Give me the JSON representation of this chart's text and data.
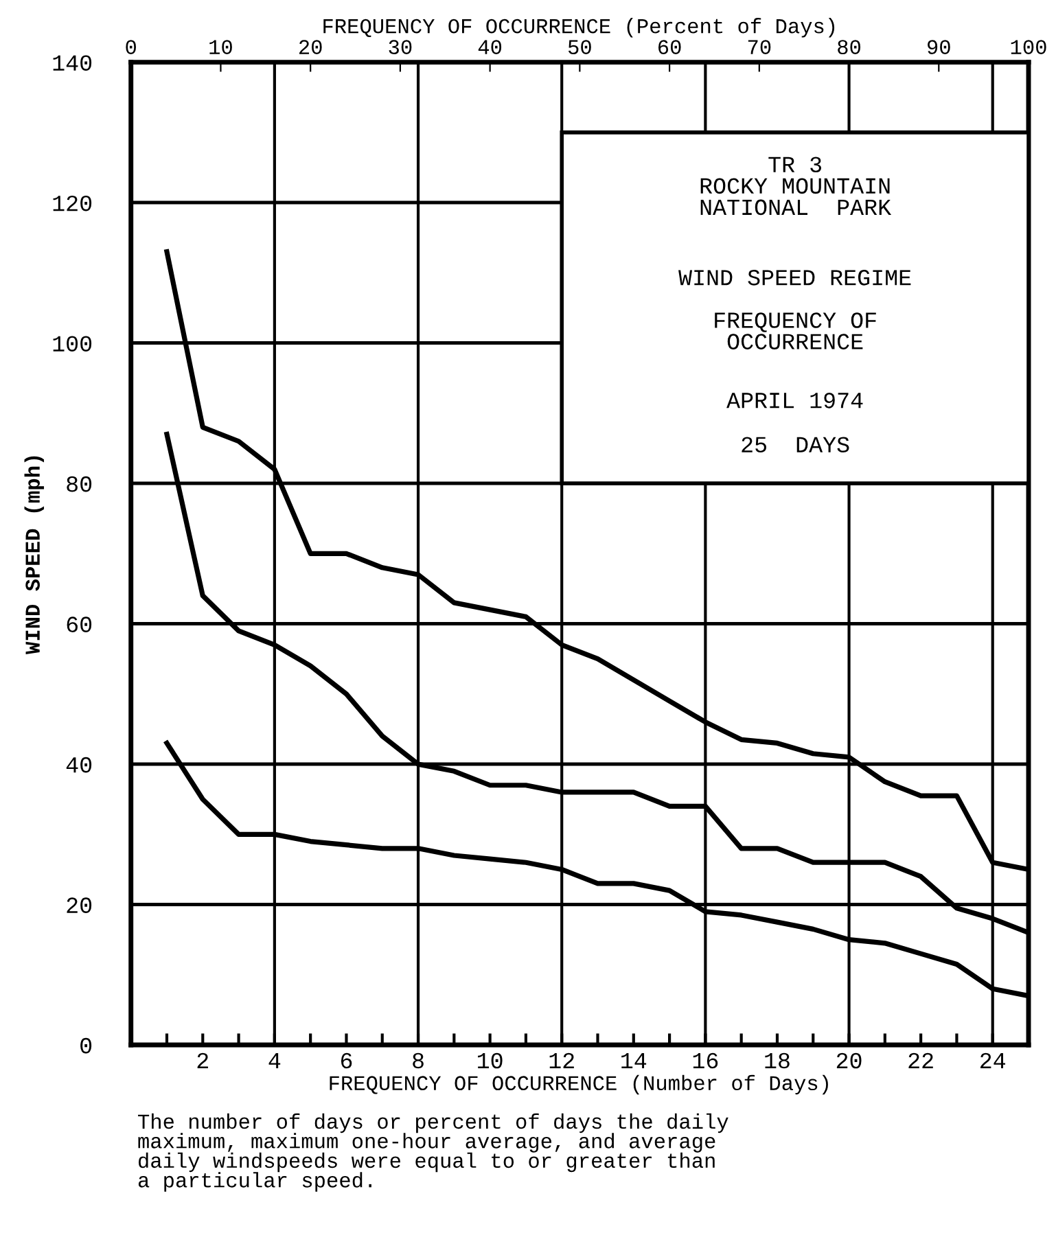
{
  "chart_data": {
    "type": "line",
    "title": "TR 3\nROCKY MOUNTAIN\nNATIONAL  PARK",
    "subtitle": "WIND SPEED REGIME\n\nFREQUENCY OF\nOCCURRENCE",
    "xlabel": "FREQUENCY OF OCCURRENCE (Number of Days)",
    "x2label": "FREQUENCY OF OCCURRENCE (Percent of Days)",
    "ylabel": "WIND SPEED (mph)",
    "annotations": [
      "APRIL 1974",
      "25  DAYS",
      "The number of days or percent of days the daily\nmaximum, maximum one-hour average, and average\ndaily windspeeds were equal to or greater than\na particular speed."
    ],
    "x": [
      1,
      2,
      3,
      4,
      5,
      6,
      7,
      8,
      9,
      10,
      11,
      12,
      13,
      14,
      15,
      16,
      17,
      18,
      19,
      20,
      21,
      22,
      23,
      24,
      25
    ],
    "series": [
      {
        "color": "#000000",
        "values": [
          113,
          88,
          86,
          82,
          70,
          70,
          68,
          67,
          63,
          62,
          61,
          57,
          55,
          52,
          49,
          46,
          43.5,
          43,
          41.5,
          41,
          37.5,
          35.5,
          35.5,
          26,
          25
        ]
      },
      {
        "color": "#000000",
        "values": [
          87,
          64,
          59,
          57,
          54,
          50,
          44,
          40,
          39,
          37,
          37,
          36,
          36,
          36,
          34,
          34,
          28,
          28,
          26,
          26,
          26,
          24,
          19.5,
          18,
          16
        ]
      },
      {
        "color": "#000000",
        "values": [
          43,
          35,
          30,
          30,
          29,
          28.5,
          28,
          28,
          27,
          26.5,
          26,
          25,
          23,
          23,
          22,
          19,
          18.5,
          17.5,
          16.5,
          15,
          14.5,
          13,
          11.5,
          8,
          7
        ]
      }
    ],
    "xlim": [
      0,
      25
    ],
    "xticks": [
      {
        "value": 1,
        "label": null
      },
      2,
      {
        "value": 3,
        "label": null
      },
      4,
      {
        "value": 5,
        "label": null
      },
      6,
      {
        "value": 7,
        "label": null
      },
      8,
      {
        "value": 9,
        "label": null
      },
      10,
      {
        "value": 11,
        "label": null
      },
      12,
      {
        "value": 13,
        "label": null
      },
      14,
      {
        "value": 15,
        "label": null
      },
      16,
      {
        "value": 17,
        "label": null
      },
      18,
      {
        "value": 19,
        "label": null
      },
      20,
      {
        "value": 21,
        "label": null
      },
      22,
      {
        "value": 23,
        "label": null
      },
      24
    ],
    "x2lim": [
      0,
      100
    ],
    "x2ticks": [
      0,
      10,
      20,
      30,
      40,
      50,
      60,
      70,
      80,
      90,
      100
    ],
    "ylim": [
      0,
      140
    ],
    "yticks": [
      0,
      20,
      40,
      60,
      80,
      100,
      120,
      140
    ],
    "grid": "y",
    "ref_lines": [
      {
        "axis": "x",
        "value": 4,
        "label": null
      },
      {
        "axis": "x",
        "value": 8,
        "label": null
      },
      {
        "axis": "x",
        "value": 12,
        "label": null
      },
      {
        "axis": "x",
        "value": 16,
        "label": null
      },
      {
        "axis": "x",
        "value": 20,
        "label": null
      },
      {
        "axis": "x",
        "value": 24,
        "label": null
      }
    ],
    "marker": "none",
    "line_style": "solid"
  }
}
